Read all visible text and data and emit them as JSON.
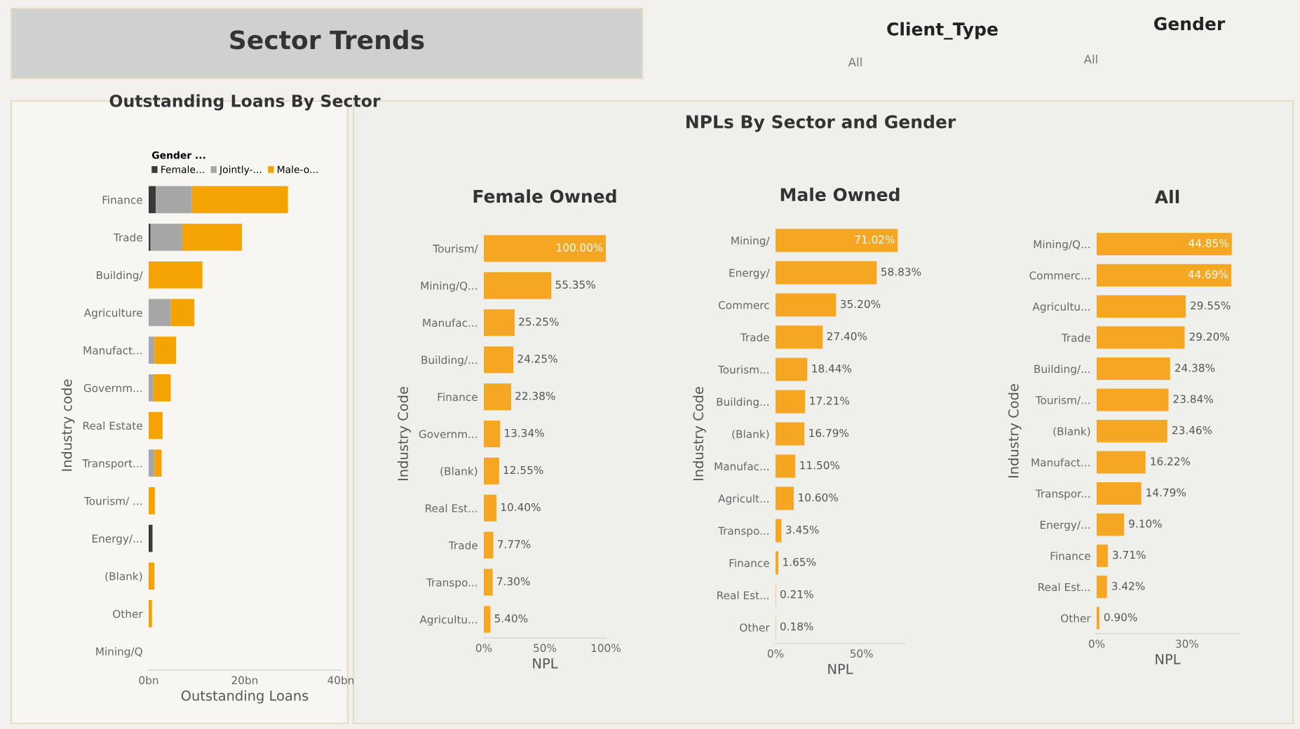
{
  "chart_data": [
    {
      "type": "other",
      "title": "Sector Trends",
      "annotations": [
        "Client_Type",
        "All",
        "Gender",
        "All"
      ]
    },
    {
      "type": "bar",
      "orientation": "horizontal",
      "stacked": true,
      "title": "Outstanding Loans By Sector",
      "xlabel": "Outstanding Loans",
      "ylabel": "Industry code",
      "legend_title": "Gender ...",
      "legend": "top",
      "categories": [
        "Finance",
        "Trade",
        "Building/",
        "Agriculture",
        "Manufact...",
        "Governm...",
        "Real Estate",
        "Transport...",
        "Tourism/ ...",
        "Energy/...",
        "(Blank)",
        "Other",
        "Mining/Q"
      ],
      "series": [
        {
          "name": "Female...",
          "color": "#3a3a3a",
          "values": [
            1.5,
            0.4,
            0,
            0,
            0,
            0,
            0,
            0,
            0,
            0.8,
            0,
            0,
            0
          ]
        },
        {
          "name": "Jointly-...",
          "color": "#a6a6a6",
          "values": [
            7.5,
            6.6,
            0,
            4.6,
            1.2,
            1,
            0,
            1.2,
            0,
            0,
            0,
            0,
            0
          ]
        },
        {
          "name": "Male-o...",
          "color": "#f5a300",
          "values": [
            20,
            12.4,
            11.2,
            4.9,
            4.5,
            3.6,
            2.9,
            1.5,
            1.3,
            0,
            1.2,
            0.7,
            0
          ]
        }
      ],
      "xlim": [
        0,
        40
      ],
      "xticks": [
        {
          "value": 0,
          "label": "0bn"
        },
        {
          "value": 20,
          "label": "20bn"
        },
        {
          "value": 40,
          "label": "40bn"
        }
      ]
    },
    {
      "type": "other",
      "title": "NPLs By Sector and Gender"
    },
    {
      "type": "bar",
      "orientation": "horizontal",
      "title": "Female Owned",
      "xlabel": "NPL",
      "ylabel": "Industry Code",
      "categories": [
        "Tourism/",
        "Mining/Q...",
        "Manufac...",
        "Building/...",
        "Finance",
        "Governm...",
        "(Blank)",
        "Real Est...",
        "Trade",
        "Transpo...",
        "Agricultu..."
      ],
      "series": [
        {
          "color": "#f5a623",
          "values": [
            100,
            55.35,
            25.25,
            24.25,
            22.38,
            13.34,
            12.55,
            10.4,
            7.77,
            7.3,
            5.4
          ],
          "value_labels": [
            "100.00%",
            "55.35%",
            "25.25%",
            "24.25%",
            "22.38%",
            "13.34%",
            "12.55%",
            "10.40%",
            "7.77%",
            "7.30%",
            "5.40%"
          ]
        }
      ],
      "xlim": [
        0,
        100
      ],
      "xticks": [
        {
          "value": 0,
          "label": "0%"
        },
        {
          "value": 50,
          "label": "50%"
        },
        {
          "value": 100,
          "label": "100%"
        }
      ]
    },
    {
      "type": "bar",
      "orientation": "horizontal",
      "title": "Male Owned",
      "xlabel": "NPL",
      "ylabel": "Industry Code",
      "categories": [
        "Mining/",
        "Energy/",
        "Commerc",
        "Trade",
        "Tourism...",
        "Building...",
        "(Blank)",
        "Manufac...",
        "Agricult...",
        "Transpo...",
        "Finance",
        "Real Est...",
        "Other"
      ],
      "series": [
        {
          "color": "#f5a623",
          "values": [
            71.02,
            58.83,
            35.2,
            27.4,
            18.44,
            17.21,
            16.79,
            11.5,
            10.6,
            3.45,
            1.65,
            0.21,
            0.18
          ],
          "value_labels": [
            "71.02%",
            "58.83%",
            "35.20%",
            "27.40%",
            "18.44%",
            "17.21%",
            "16.79%",
            "11.50%",
            "10.60%",
            "3.45%",
            "1.65%",
            "0.21%",
            "0.18%"
          ]
        }
      ],
      "xlim": [
        0,
        75
      ],
      "xticks": [
        {
          "value": 0,
          "label": "0%"
        },
        {
          "value": 50,
          "label": "50%"
        }
      ]
    },
    {
      "type": "bar",
      "orientation": "horizontal",
      "title": "All",
      "xlabel": "NPL",
      "ylabel": "Industry Code",
      "categories": [
        "Mining/Q...",
        "Commerc...",
        "Agricultu...",
        "Trade",
        "Building/...",
        "Tourism/...",
        "(Blank)",
        "Manufact...",
        "Transpor...",
        "Energy/...",
        "Finance",
        "Real Est...",
        "Other"
      ],
      "series": [
        {
          "color": "#f5a623",
          "values": [
            44.85,
            44.69,
            29.55,
            29.2,
            24.38,
            23.84,
            23.46,
            16.22,
            14.79,
            9.1,
            3.71,
            3.42,
            0.9
          ],
          "value_labels": [
            "44.85%",
            "44.69%",
            "29.55%",
            "29.20%",
            "24.38%",
            "23.84%",
            "23.46%",
            "16.22%",
            "14.79%",
            "9.10%",
            "3.71%",
            "3.42%",
            "0.90%"
          ]
        }
      ],
      "xlim": [
        0,
        47
      ],
      "xticks": [
        {
          "value": 0,
          "label": "0%"
        },
        {
          "value": 30,
          "label": "30%"
        }
      ]
    }
  ]
}
